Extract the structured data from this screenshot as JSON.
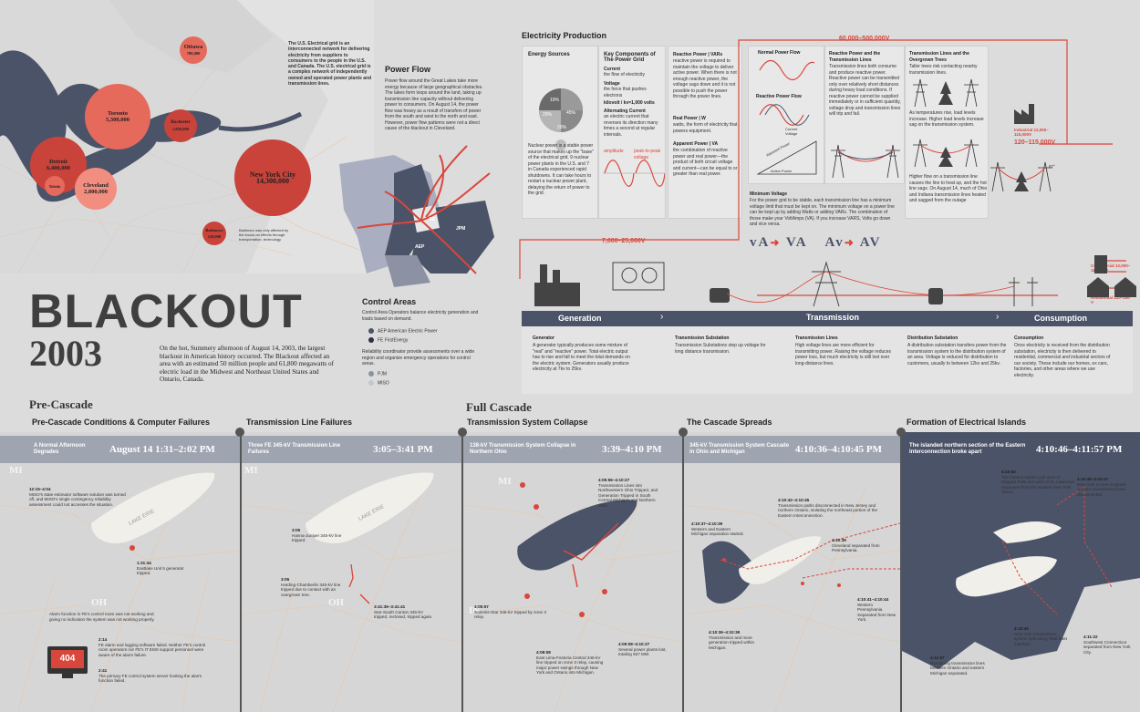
{
  "title": {
    "line1": "BLACKOUT",
    "line2": "2003"
  },
  "intro": "On the hot, Summery afternoon of August 14, 2003, the largest blackout in American history occurred. The Blackout affected an area with an estimated 50 million people and 61,800 megawatts of electric load in the Midwest and Northeast United States and Ontario, Canada.",
  "grid_note": "The U.S. Electrical grid is an interconnected network for delivering electricity from suppliers to consumers to the people in the U.S. and Canada. The U.S. electrical grid is a complex network of independently owned and operated power plants and transmission lines.",
  "cities": [
    {
      "name": "Ottawa",
      "pop": "780,000"
    },
    {
      "name": "Toronto",
      "pop": "5,300,000"
    },
    {
      "name": "Rochester",
      "pop": "1,050,000"
    },
    {
      "name": "Detroit",
      "pop": "6,400,000"
    },
    {
      "name": "Toledo",
      "pop": "500,000"
    },
    {
      "name": "Cleveland",
      "pop": "2,800,000"
    },
    {
      "name": "New York City",
      "pop": "14,300,000"
    },
    {
      "name": "Baltimore",
      "pop": "110,000"
    }
  ],
  "city_note": "Baltimore was only affected by the knock-on effects through transportation, technology",
  "map_labels": {
    "mi": "MI",
    "oh": "OH",
    "in": "IN"
  },
  "power_flow": {
    "title": "Power Flow",
    "text": "Power flow around the Great Lakes take more energy because of large geographical obstacles. The lakes form loops around the land, taking up transmission line capacity without delivering power to consumers. On August 14, the power flow was heavy as a result of transfers of power from the south and west to the north and east. However, power flow patterns were not a direct cause of the blackout in Cleveland.",
    "labels": [
      "FE",
      "AEP",
      "JPM",
      "MISO"
    ]
  },
  "control_areas": {
    "title": "Control Areas",
    "text1": "Control Area Operators balance electricity generation and loads based on demand.",
    "items1": [
      "AEP   American Electric Power",
      "FE   FirstEnergy"
    ],
    "text2": "Reliability coordinator provide assessments over a wide region and organize emergency operations for control areas.",
    "items2": [
      "PJM",
      "MISO"
    ]
  },
  "electricity": {
    "title": "Electricity Production",
    "energy_sources": {
      "title": "Energy Sources",
      "pcts": [
        "19%",
        "20%",
        "45%",
        "20%"
      ]
    },
    "nuclear": "Nuclear power is a stable power source that makes up the \"base\" of the electrical grid. 9 nuclear power plants in the U.S. and 7 in Canada experienced rapid shutdowns. It can take hours to restart a nuclear power plant, delaying the return of power to the grid.",
    "key": {
      "title": "Key Components of The Power Grid",
      "current": "Current",
      "current_def": "the flow of electricity",
      "voltage": "Voltage",
      "voltage_def": "the force that pushes electrons",
      "kw": "kilovolt / kv=1,000 volts",
      "ac": "Alternating Current",
      "ac_def": "an electric current that reverses its direction many times a second at regular intervals.",
      "amp": "amplitude",
      "ptp": "peak-to-peak voltage"
    },
    "reactive": {
      "title": "Reactive Power | VARs",
      "text": "reactive power is required to maintain the voltage to deliver active power. When there is not enough reactive power, the voltage sags down and it is not possible to push the power through the power lines.",
      "real_title": "Real Power | W",
      "real": "watts, the form of electricity that powers equipment.",
      "app_title": "Apparent Power | VA",
      "app": "the combination of reactive power and real power—the product of both circuit voltage and current—can be equal to or greater than real power."
    },
    "flows": {
      "normal": "Normal Power Flow",
      "reactive": "Reactive Power Flow",
      "current": "Current",
      "voltage": "Voltage",
      "apparent": "Apparent Power",
      "reactive_p": "Reactive Power",
      "active": "Active Power"
    },
    "min_voltage": {
      "title": "Minimum Voltage",
      "text": "For the power grid to be stable, each transmission line has a minimum voltage limit that must be kept on. The minimum voltage on a power line can be kept up by adding Watts or adding VARs. The combination of those make your VoltAmps (VA). If you increase VARS, Volts go down and vice versa.",
      "symbols": [
        "vA",
        "VA",
        "Av",
        "AV"
      ]
    },
    "reactive_lines": {
      "title": "Reactive Power and the Transmission Lines",
      "text": "Transmission lines both consume and produce reactive power. Reactive power can be transmitted only over relatively short distances during heavy load conditions. If reactive power cannot be supplied immediately or in sufficient quantity, voltage drop and transmission lines will trip and fail.",
      "low": "Lower Voltage = Less power Flow",
      "high": "Higher Voltage = Higher power flow",
      "norm": "Normal Voltage"
    },
    "trees": {
      "title": "Transmission Lines and the Overgrown Trees",
      "text1": "Taller trees risk contacting nearby transmission lines.",
      "text2": "As temperatures rise, load levels increase. Higher load levels increase sag on the transmission system.",
      "text3": "Higher flow on a transmission line causes the line to heat up, and the hot line sags. On August 14, much of Ohio and Indiana transmission lines heated and sagged from the outage",
      "deg": "87°",
      "deg2": "82°"
    },
    "voltages": {
      "high": "60,000–500,000V",
      "mid": "120–115,000V",
      "gen": "7,000–25,000V",
      "industrial": "Industrial 12,000–115,000V",
      "commercial": "Commercial 12,000–115,000V",
      "residential": "Residential 120–240 V"
    },
    "stages": [
      "Generation",
      "Transmission",
      "Consumption"
    ],
    "descs": [
      {
        "t": "Generator",
        "d": "A generator typically produces some mixture of \"real\" and \"reactive\" power. Total electric output has to rise and fall to meet the total demands on the electric system. Generators usually produce electricity at 7kv to 25kv."
      },
      {
        "t": "Transmission Substation",
        "d": "Transmission Substations step up voltage for long distance transmission."
      },
      {
        "t": "Transmission Lines",
        "d": "High voltage lines are more efficient for transmitting power. Raising the voltage reduces power loss, but much electricity is still lost over long-distance lines."
      },
      {
        "t": "Distribution Substation",
        "d": "A distribution substation transfers power from the transmission system to the distribution system of an area. Voltage is reduced for distribution to customers, usually to between 12kv and 25kv."
      },
      {
        "t": "Consumption",
        "d": "Once electricity is received from the distribution substation, electricity is then delivered to residential, commercial and industrial sectors of our society. These include our homes, ex cars, factories, and other areas where we use electricity."
      }
    ]
  },
  "phases": [
    {
      "phase": "Pre-Cascade",
      "title": "Pre-Cascade Conditions & Computer Failures",
      "band": "A Normal Afternoon Degrades",
      "time": "August 14 1:31–2:02 PM",
      "notes": [
        {
          "t": "12:15–4:04",
          "d": "MISO's state estimator software solution was turned off, and MISO's single contingency reliability assessment could not accesses the situation."
        },
        {
          "t": "1:31:34",
          "d": "Eastlake Unit 5 generator tripped."
        },
        {
          "t": "",
          "d": "Alarm function in FE's control room was not working and giving no indication the system was not working properly."
        },
        {
          "t": "2:14",
          "d": "FE alarm and logging software failed. Neither FE's control room operators nor FE's IT EMS support personnel were aware of the alarm failure."
        },
        {
          "t": "2:41",
          "d": "The primary FE control system server hosting the alarm function failed."
        }
      ],
      "lake": "LAKE ERIE",
      "error": "404"
    },
    {
      "phase": "",
      "title": "Transmission Line Failures",
      "band": "Three FE 345-kV Transmission Line Failures",
      "time": "3:05–3:41 PM",
      "notes": [
        {
          "t": "3:05",
          "d": "Hanna-Juniper 345-kV line tripped."
        },
        {
          "t": "3:05",
          "d": "Harding-Chamberlin 345-kV line tripped due to contact with an overgrown tree."
        },
        {
          "t": "3:41:35–3:41:41",
          "d": "Star-South Canton 345-kV tripped, reclosed, tripped again."
        }
      ],
      "lake": "LAKE ERIE"
    },
    {
      "phase": "Full Cascade",
      "title": "Transmission System Collapse",
      "band": "138-kV Transmission System Collapse in Northern Ohio",
      "time": "3:39–4:10 PM",
      "notes": [
        {
          "t": "4:05:56–4:10:27",
          "d": "Transmission Lines into Northwestern Ohio Tripped, and Generation Tripped in South Central Michigan and Northern Ohio."
        },
        {
          "t": "4:05:57",
          "d": "Sammis-Star 345-kV tripped by zone 3 relay."
        },
        {
          "t": "4:08:58",
          "d": "East Lima-Fostoria Central 345-kV line tripped on zone 3 relay, causing major power swings through New York and Ontario into Michigan."
        },
        {
          "t": "4:09:08–4:10:27",
          "d": "Several power plants lost, totaling 937 MW."
        }
      ]
    },
    {
      "phase": "",
      "title": "The Cascade Spreads",
      "band": "345-kV Transmission System Cascade in Ohio and Michigan",
      "time": "4:10:36–4:10:45 PM",
      "notes": [
        {
          "t": "4:10:37–4:10:39",
          "d": "Western and Eastern Michigan separation started."
        },
        {
          "t": "4:10:42–4:10:45",
          "d": "Transmission paths disconnected in New Jersey and northern Ontario, isolating the northeast portion of the Eastern Interconnection."
        },
        {
          "t": "4:10:39",
          "d": "Cleveland separated from Pennsylvania."
        },
        {
          "t": "4:10:41–4:10:44",
          "d": "Western Pennsylvania Separated from New York."
        },
        {
          "t": "4:10:36–4:10:39",
          "d": "Transmission and more generation tripped within Michigan."
        }
      ]
    },
    {
      "phase": "",
      "title": "Formation of Electrical Islands",
      "band": "The islanded northern section of the Eastern Interconnection broke apart",
      "time": "4:10:46–4:11:57 PM",
      "notes": [
        {
          "t": "4:10:50",
          "d": "The Ontario system just west of Niagara Falls and west of St. Lawrence separated from the western New York island."
        },
        {
          "t": "4:10:46–4:10:47",
          "d": "New York to New England upstate transmission lines disconnected."
        },
        {
          "t": "4:10:49",
          "d": "New York transmission system split along Total East interface."
        },
        {
          "t": "4:11:22",
          "d": "Southwest Connecticut separated from New York City."
        },
        {
          "t": "4:11:57",
          "d": "Remaining transmission lines between Ontario and eastern Michigan separated."
        }
      ]
    }
  ],
  "colors": {
    "slate": "#4b5369",
    "red": "#d9463b",
    "bg": "#dcdcdc",
    "band": "#9aa0ae"
  }
}
